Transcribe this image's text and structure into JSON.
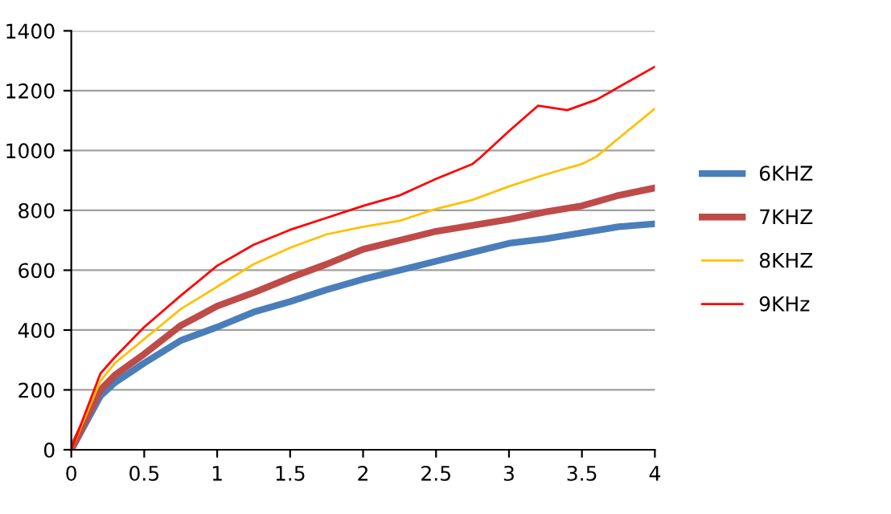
{
  "chart_data": {
    "type": "line",
    "x": [
      0,
      0.2,
      0.3,
      0.5,
      0.75,
      1,
      1.25,
      1.5,
      1.75,
      2,
      2.25,
      2.5,
      2.75,
      3,
      3.25,
      3.5,
      3.75,
      4
    ],
    "series": [
      {
        "name": "6KHZ",
        "color": "#4a7ebb",
        "values": [
          0,
          180,
          225,
          290,
          365,
          410,
          460,
          495,
          535,
          570,
          600,
          630,
          660,
          690,
          705,
          725,
          745,
          755
        ]
      },
      {
        "name": "7KHZ",
        "color": "#be4b48",
        "values": [
          0,
          200,
          250,
          320,
          415,
          480,
          525,
          575,
          620,
          670,
          700,
          730,
          750,
          770,
          795,
          815,
          850,
          875
        ]
      },
      {
        "name": "8KHZ",
        "color": "#ffc000",
        "x": [
          0,
          0.2,
          0.3,
          0.5,
          0.75,
          1,
          1.25,
          1.5,
          1.75,
          2,
          2.25,
          2.5,
          2.75,
          3,
          3.25,
          3.5,
          3.6,
          3.75,
          4
        ],
        "values": [
          0,
          230,
          290,
          370,
          470,
          545,
          620,
          675,
          720,
          745,
          765,
          805,
          835,
          880,
          920,
          955,
          980,
          1040,
          1140
        ]
      },
      {
        "name": "9KHz",
        "color": "#ff0000",
        "x": [
          0,
          0.2,
          0.3,
          0.5,
          0.75,
          1,
          1.25,
          1.5,
          1.75,
          2,
          2.25,
          2.5,
          2.75,
          2.8,
          3,
          3.2,
          3.4,
          3.6,
          4
        ],
        "values": [
          0,
          255,
          310,
          410,
          515,
          615,
          685,
          735,
          775,
          815,
          850,
          905,
          955,
          975,
          1065,
          1150,
          1135,
          1170,
          1280
        ]
      }
    ],
    "xlim": [
      0,
      4
    ],
    "xticks": [
      0,
      0.5,
      1,
      1.5,
      2,
      2.5,
      3,
      3.5,
      4
    ],
    "ylim": [
      0,
      1400
    ],
    "yticks": [
      0,
      200,
      400,
      600,
      800,
      1000,
      1200,
      1400
    ],
    "grid": "y",
    "legend": "right"
  }
}
